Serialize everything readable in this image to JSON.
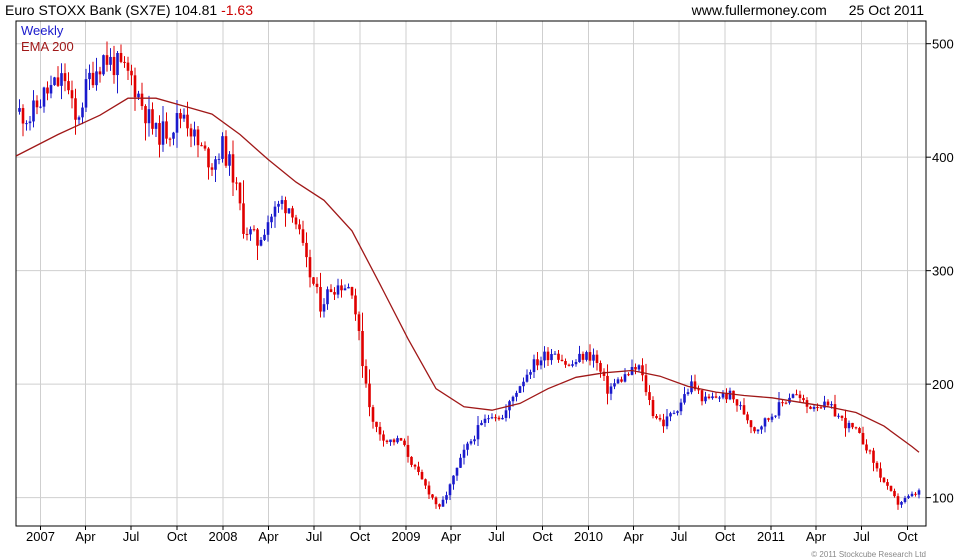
{
  "header": {
    "name": "Euro STOXX Bank (SX7E)",
    "last": "104.81",
    "change": "-1.63",
    "site": "www.fullermoney.com",
    "date": "25 Oct 2011"
  },
  "credit": "© 2011 Stockcube Research Ltd",
  "colors": {
    "up": "#1a1acc",
    "down": "#e00000",
    "ema": "#a01818",
    "grid": "#cfcfcf"
  },
  "chart_data": {
    "type": "line",
    "subtype": "weekly candlestick with moving average",
    "legend": [
      "Weekly",
      "EMA 200"
    ],
    "legend_position": "top-left",
    "ylim": [
      75,
      520
    ],
    "y_ticks": [
      100,
      200,
      300,
      400,
      500
    ],
    "y_axis_side": "right",
    "grid": true,
    "x_range": [
      "2006-11-13",
      "2011-11-07"
    ],
    "x_ticks": [
      {
        "date": "2007-01-01",
        "label": "2007"
      },
      {
        "date": "2007-04-01",
        "label": "Apr"
      },
      {
        "date": "2007-07-01",
        "label": "Jul"
      },
      {
        "date": "2007-10-01",
        "label": "Oct"
      },
      {
        "date": "2008-01-01",
        "label": "2008"
      },
      {
        "date": "2008-04-01",
        "label": "Apr"
      },
      {
        "date": "2008-07-01",
        "label": "Jul"
      },
      {
        "date": "2008-10-01",
        "label": "Oct"
      },
      {
        "date": "2009-01-01",
        "label": "2009"
      },
      {
        "date": "2009-04-01",
        "label": "Apr"
      },
      {
        "date": "2009-07-01",
        "label": "Jul"
      },
      {
        "date": "2009-10-01",
        "label": "Oct"
      },
      {
        "date": "2010-01-01",
        "label": "2010"
      },
      {
        "date": "2010-04-01",
        "label": "Apr"
      },
      {
        "date": "2010-07-01",
        "label": "Jul"
      },
      {
        "date": "2010-10-01",
        "label": "Oct"
      },
      {
        "date": "2011-01-01",
        "label": "2011"
      },
      {
        "date": "2011-04-01",
        "label": "Apr"
      },
      {
        "date": "2011-07-01",
        "label": "Jul"
      },
      {
        "date": "2011-10-01",
        "label": "Oct"
      }
    ],
    "price_path": [
      [
        "2006-11-20",
        440
      ],
      [
        "2006-12-11",
        435
      ],
      [
        "2007-01-08",
        455
      ],
      [
        "2007-02-19",
        470
      ],
      [
        "2007-03-12",
        430
      ],
      [
        "2007-04-09",
        470
      ],
      [
        "2007-05-07",
        488
      ],
      [
        "2007-06-04",
        480
      ],
      [
        "2007-07-02",
        470
      ],
      [
        "2007-07-30",
        440
      ],
      [
        "2007-08-20",
        420
      ],
      [
        "2007-09-17",
        425
      ],
      [
        "2007-10-15",
        440
      ],
      [
        "2007-11-12",
        410
      ],
      [
        "2007-12-10",
        395
      ],
      [
        "2007-12-31",
        410
      ],
      [
        "2008-01-21",
        385
      ],
      [
        "2008-02-11",
        340
      ],
      [
        "2008-03-10",
        325
      ],
      [
        "2008-03-31",
        345
      ],
      [
        "2008-04-28",
        360
      ],
      [
        "2008-05-19",
        355
      ],
      [
        "2008-06-16",
        305
      ],
      [
        "2008-07-14",
        270
      ],
      [
        "2008-08-04",
        285
      ],
      [
        "2008-08-25",
        288
      ],
      [
        "2008-09-15",
        285
      ],
      [
        "2008-10-06",
        220
      ],
      [
        "2008-10-27",
        165
      ],
      [
        "2008-11-24",
        150
      ],
      [
        "2008-12-22",
        150
      ],
      [
        "2009-01-19",
        125
      ],
      [
        "2009-02-16",
        105
      ],
      [
        "2009-03-09",
        90
      ],
      [
        "2009-03-30",
        110
      ],
      [
        "2009-04-27",
        140
      ],
      [
        "2009-05-25",
        160
      ],
      [
        "2009-06-22",
        175
      ],
      [
        "2009-07-13",
        170
      ],
      [
        "2009-08-10",
        195
      ],
      [
        "2009-09-07",
        215
      ],
      [
        "2009-10-05",
        225
      ],
      [
        "2009-10-26",
        230
      ],
      [
        "2009-11-23",
        215
      ],
      [
        "2009-12-21",
        225
      ],
      [
        "2010-01-11",
        225
      ],
      [
        "2010-02-08",
        195
      ],
      [
        "2010-03-08",
        205
      ],
      [
        "2010-04-12",
        215
      ],
      [
        "2010-05-10",
        175
      ],
      [
        "2010-05-31",
        165
      ],
      [
        "2010-06-28",
        180
      ],
      [
        "2010-07-26",
        200
      ],
      [
        "2010-08-23",
        185
      ],
      [
        "2010-09-20",
        190
      ],
      [
        "2010-10-11",
        190
      ],
      [
        "2010-11-08",
        175
      ],
      [
        "2010-11-29",
        160
      ],
      [
        "2010-12-27",
        170
      ],
      [
        "2011-01-17",
        180
      ],
      [
        "2011-02-14",
        193
      ],
      [
        "2011-03-14",
        180
      ],
      [
        "2011-04-04",
        183
      ],
      [
        "2011-05-02",
        178
      ],
      [
        "2011-05-30",
        165
      ],
      [
        "2011-06-20",
        158
      ],
      [
        "2011-07-11",
        145
      ],
      [
        "2011-08-01",
        125
      ],
      [
        "2011-08-22",
        108
      ],
      [
        "2011-09-12",
        95
      ],
      [
        "2011-10-03",
        100
      ],
      [
        "2011-10-24",
        105
      ]
    ],
    "ema_200": [
      [
        "2006-11-13",
        401
      ],
      [
        "2007-02-05",
        420
      ],
      [
        "2007-04-30",
        437
      ],
      [
        "2007-06-25",
        452
      ],
      [
        "2007-08-20",
        452
      ],
      [
        "2007-10-15",
        445
      ],
      [
        "2007-12-10",
        438
      ],
      [
        "2008-02-04",
        420
      ],
      [
        "2008-03-31",
        398
      ],
      [
        "2008-05-26",
        378
      ],
      [
        "2008-07-21",
        362
      ],
      [
        "2008-09-15",
        335
      ],
      [
        "2008-11-10",
        288
      ],
      [
        "2009-01-05",
        240
      ],
      [
        "2009-03-02",
        196
      ],
      [
        "2009-04-27",
        180
      ],
      [
        "2009-06-22",
        177
      ],
      [
        "2009-08-17",
        183
      ],
      [
        "2009-10-12",
        196
      ],
      [
        "2009-12-07",
        206
      ],
      [
        "2010-02-01",
        210
      ],
      [
        "2010-03-29",
        212
      ],
      [
        "2010-05-24",
        207
      ],
      [
        "2010-07-19",
        198
      ],
      [
        "2010-09-13",
        193
      ],
      [
        "2010-11-08",
        190
      ],
      [
        "2011-01-03",
        188
      ],
      [
        "2011-02-28",
        184
      ],
      [
        "2011-04-25",
        180
      ],
      [
        "2011-06-20",
        175
      ],
      [
        "2011-08-15",
        163
      ],
      [
        "2011-10-10",
        145
      ],
      [
        "2011-10-24",
        140
      ]
    ]
  }
}
